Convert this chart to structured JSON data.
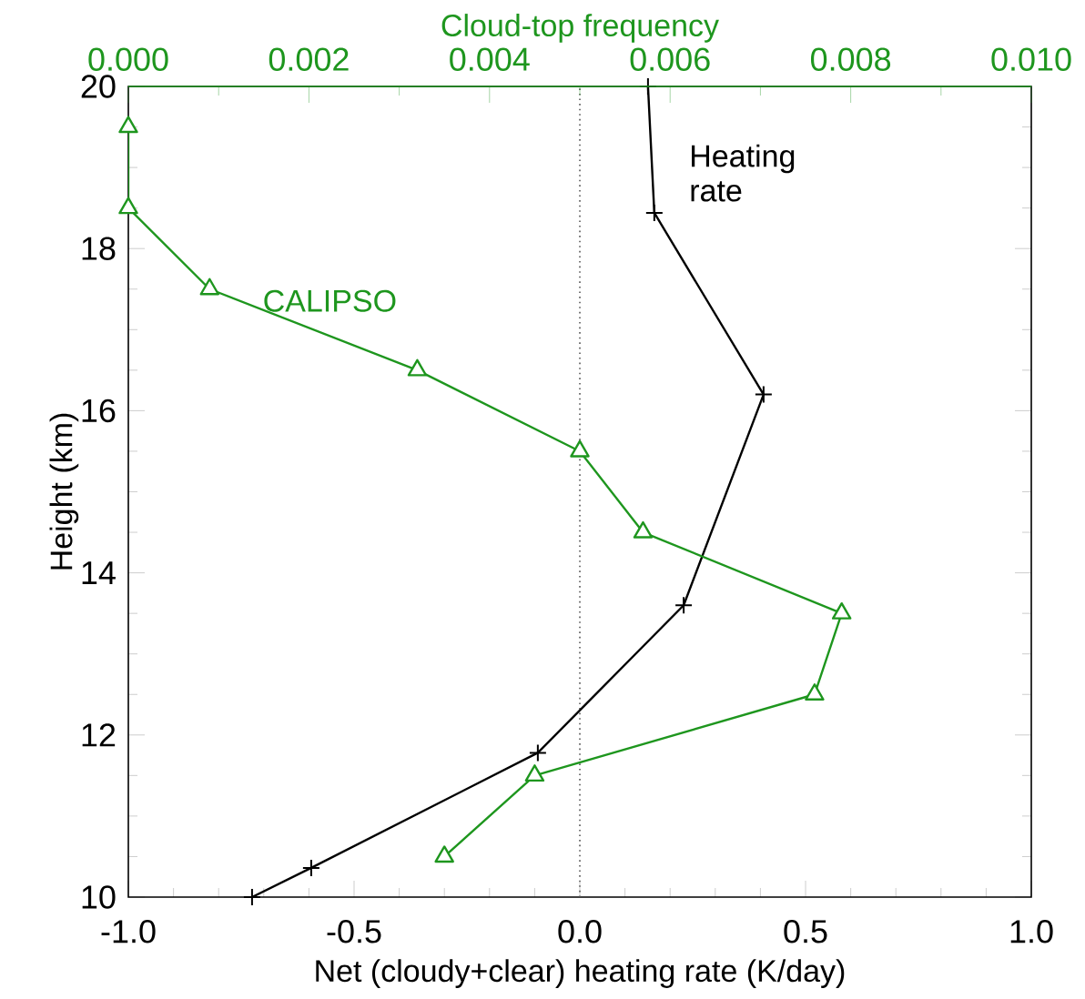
{
  "chart_data": {
    "type": "line",
    "xlabel": "Net (cloudy+clear) heating rate (K/day)",
    "ylabel": "Height (km)",
    "x2label": "Cloud-top frequency",
    "xlim": [
      -1,
      1
    ],
    "xticks": [
      {
        "value": -1,
        "label": "-1.0"
      },
      {
        "value": -0.5,
        "label": "-0.5"
      },
      {
        "value": 0,
        "label": "0.0"
      },
      {
        "value": 0.5,
        "label": "0.5"
      },
      {
        "value": 1,
        "label": "1.0"
      }
    ],
    "x2lim": [
      0,
      0.01
    ],
    "x2ticks": [
      {
        "value": 0,
        "label": "0.000"
      },
      {
        "value": 0.002,
        "label": "0.002"
      },
      {
        "value": 0.004,
        "label": "0.004"
      },
      {
        "value": 0.006,
        "label": "0.006"
      },
      {
        "value": 0.008,
        "label": "0.008"
      },
      {
        "value": 0.01,
        "label": "0.010"
      }
    ],
    "ylim": [
      10,
      20
    ],
    "yticks": [
      10,
      12,
      14,
      16,
      18,
      20
    ],
    "ref_lines": [
      {
        "axis": "x",
        "value": 0,
        "color": "#555555",
        "line_style": "dotted"
      }
    ],
    "series": [
      {
        "name": "Heating rate",
        "color": "#000000",
        "marker": "cross",
        "x": [
          0.151,
          0.165,
          0.407,
          0.23,
          -0.093,
          -0.595,
          -0.726
        ],
        "values": [
          20,
          18.44,
          16.2,
          13.6,
          11.78,
          10.36,
          10
        ]
      },
      {
        "name": "CALIPSO",
        "color": "#1e961e",
        "marker": "triangle",
        "axis": "x2",
        "x": [
          0.0,
          0.0,
          0.0009,
          0.0032,
          0.005,
          0.0057,
          0.0079,
          0.0076,
          0.0045,
          0.0035
        ],
        "values": [
          19.5,
          18.5,
          17.5,
          16.5,
          15.5,
          14.5,
          13.5,
          12.5,
          11.5,
          10.5
        ]
      }
    ]
  }
}
